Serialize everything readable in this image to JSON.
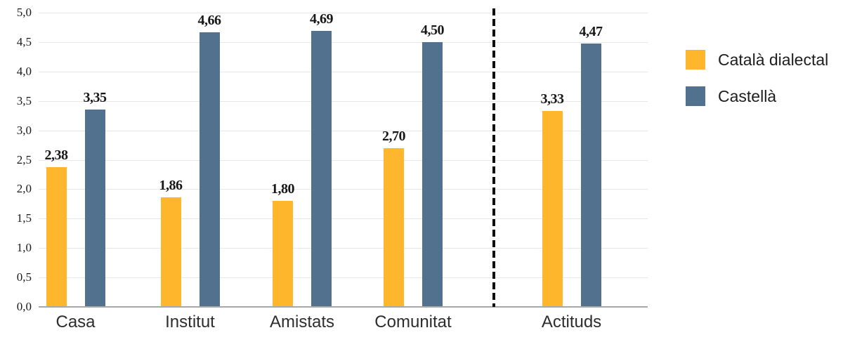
{
  "chart_data": {
    "type": "bar",
    "title": "",
    "xlabel": "",
    "ylabel": "",
    "categories": [
      "Casa",
      "Institut",
      "Amistats",
      "Comunitat",
      "Actituds"
    ],
    "series": [
      {
        "name": "Català dialectal",
        "color": "#FEB72D",
        "values": [
          2.38,
          1.86,
          1.8,
          2.7,
          3.33
        ],
        "value_labels": [
          "2,38",
          "1,86",
          "1,80",
          "2,70",
          "3,33"
        ]
      },
      {
        "name": "Castellà",
        "color": "#51718F",
        "values": [
          3.35,
          4.66,
          4.69,
          4.5,
          4.47
        ],
        "value_labels": [
          "3,35",
          "4,66",
          "4,69",
          "4,50",
          "4,47"
        ]
      }
    ],
    "ylim": [
      0,
      5
    ],
    "ytick_values": [
      0,
      0.5,
      1,
      1.5,
      2,
      2.5,
      3,
      3.5,
      4,
      4.5,
      5
    ],
    "ytick_labels": [
      "0,0",
      "0,5",
      "1,0",
      "1,5",
      "2,0",
      "2,5",
      "3,0",
      "3,5",
      "4,0",
      "4,5",
      "5,0"
    ],
    "decimal_separator": ",",
    "grid": true,
    "legend_position": "right",
    "annotations": [
      {
        "type": "vertical-dashed-divider",
        "between": [
          "Comunitat",
          "Actituds"
        ]
      }
    ]
  }
}
